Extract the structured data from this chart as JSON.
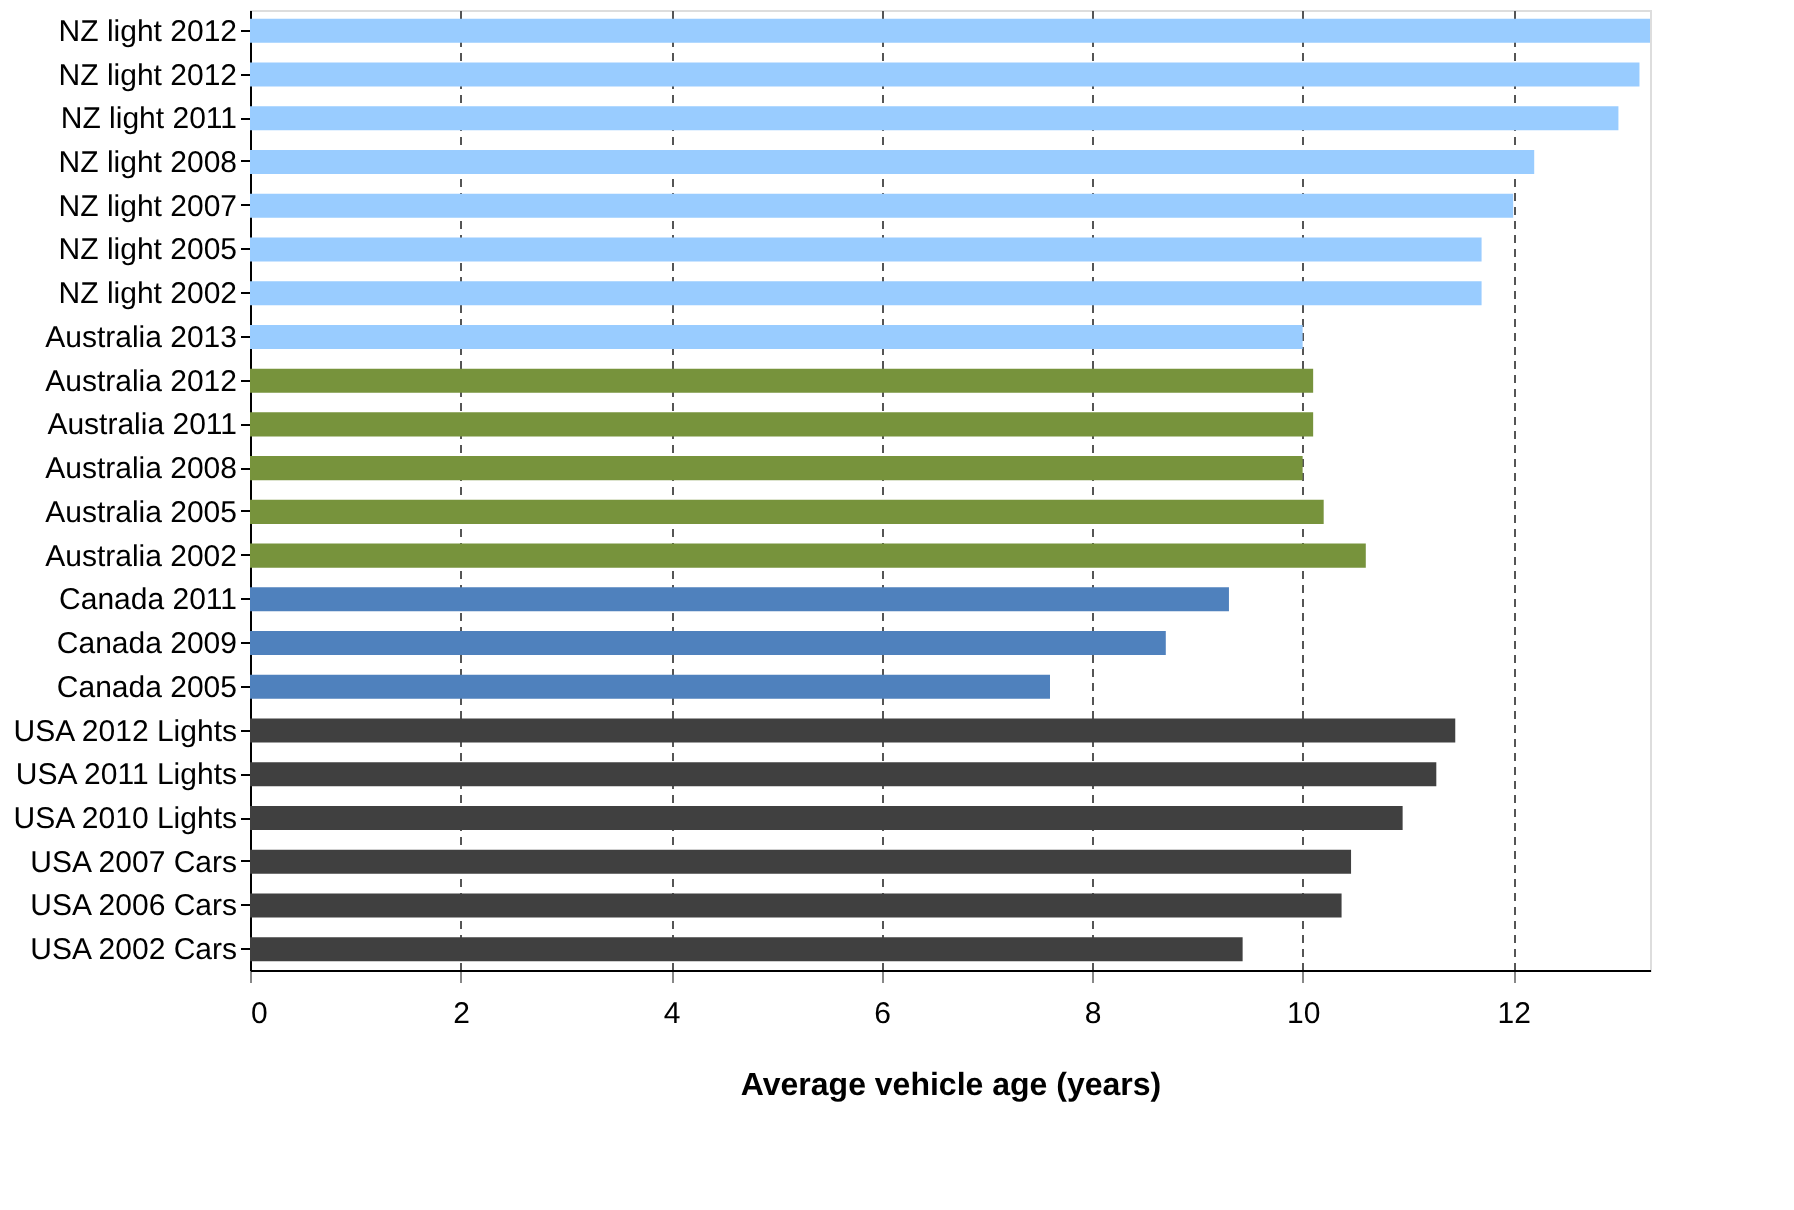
{
  "chart_data": {
    "type": "bar",
    "orientation": "horizontal",
    "xlabel": "Average vehicle age (years)",
    "categories": [
      "NZ light 2012",
      "NZ light 2012",
      "NZ light 2011",
      "NZ light 2008",
      "NZ light 2007",
      "NZ light 2005",
      "NZ light 2002",
      "Australia 2013",
      "Australia 2012",
      "Australia 2011",
      "Australia 2008",
      "Australia 2005",
      "Australia 2002",
      "Canada 2011",
      "Canada 2009",
      "Canada 2005",
      "USA 2012 Lights",
      "USA 2011 Lights",
      "USA 2010 Lights",
      "USA 2007 Cars",
      "USA 2006 Cars",
      "USA 2002 Cars"
    ],
    "values": [
      13.3,
      13.2,
      13.0,
      12.2,
      12.0,
      11.7,
      11.7,
      10.0,
      10.1,
      10.1,
      10.0,
      10.2,
      10.6,
      9.3,
      8.7,
      7.6,
      11.45,
      11.27,
      10.95,
      10.46,
      10.37,
      9.43
    ],
    "colors": [
      "#99ccff",
      "#99ccff",
      "#99ccff",
      "#99ccff",
      "#99ccff",
      "#99ccff",
      "#99ccff",
      "#99ccff",
      "#77933c",
      "#77933c",
      "#77933c",
      "#77933c",
      "#77933c",
      "#4f81bd",
      "#4f81bd",
      "#4f81bd",
      "#404040",
      "#404040",
      "#404040",
      "#404040",
      "#404040",
      "#404040"
    ],
    "xlim": [
      0,
      13.3
    ],
    "xticks": [
      0,
      2,
      4,
      6,
      8,
      10,
      12
    ],
    "grid": "x",
    "legend": false
  }
}
